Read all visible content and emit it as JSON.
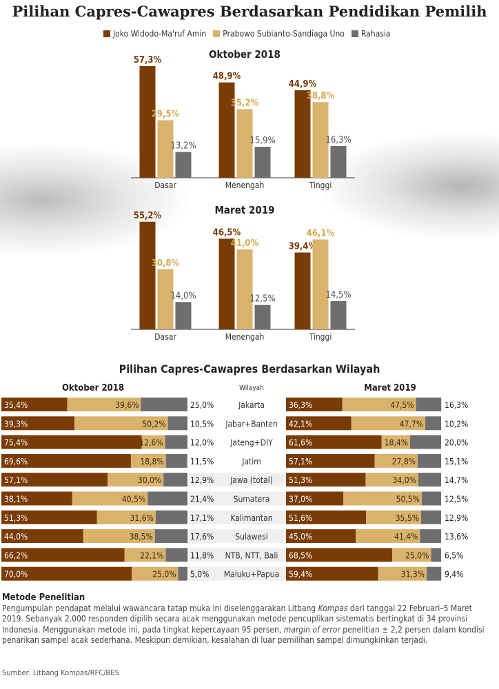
{
  "title": "Pilihan Capres-Cawapres Berdasarkan Pendidikan Pemilih",
  "legend": [
    {
      "name": "Joko Widodo-Ma'ruf Amin",
      "color": "#7a3c06"
    },
    {
      "name": "Prabowo Subianto-Sandiaga Uno",
      "color": "#d9b36c"
    },
    {
      "name": "Rahasia",
      "color": "#6e6e70"
    }
  ],
  "section2_title": "Pilihan Capres-Cawapres Berdasarkan Wilayah",
  "wilayah_label": "Wilayah",
  "chart_data": [
    {
      "type": "bar",
      "title": "Oktober 2018",
      "categories": [
        "Dasar",
        "Menengah",
        "Tinggi"
      ],
      "series": [
        {
          "name": "Joko Widodo-Ma'ruf Amin",
          "values": [
            57.3,
            48.9,
            44.9
          ],
          "labels": [
            "57,3%",
            "48,9%",
            "44,9%"
          ]
        },
        {
          "name": "Prabowo Subianto-Sandiaga Uno",
          "values": [
            29.5,
            35.2,
            38.8
          ],
          "labels": [
            "29,5%",
            "35,2%",
            "38,8%"
          ]
        },
        {
          "name": "Rahasia",
          "values": [
            13.2,
            15.9,
            16.3
          ],
          "labels": [
            "13,2%",
            "15,9%",
            "16,3%"
          ]
        }
      ]
    },
    {
      "type": "bar",
      "title": "Maret 2019",
      "categories": [
        "Dasar",
        "Menengah",
        "Tinggi"
      ],
      "series": [
        {
          "name": "Joko Widodo-Ma'ruf Amin",
          "values": [
            55.2,
            46.5,
            39.4
          ],
          "labels": [
            "55,2%",
            "46,5%",
            "39,4%"
          ]
        },
        {
          "name": "Prabowo Subianto-Sandiaga Uno",
          "values": [
            30.8,
            41.0,
            46.1
          ],
          "labels": [
            "30,8%",
            "41,0%",
            "46,1%"
          ]
        },
        {
          "name": "Rahasia",
          "values": [
            14.0,
            12.5,
            14.5
          ],
          "labels": [
            "14,0%",
            "12,5%",
            "14,5%"
          ]
        }
      ]
    },
    {
      "type": "bar",
      "orientation": "horizontal-stacked",
      "title": "Oktober 2018",
      "categories": [
        "Jakarta",
        "Jabar+Banten",
        "Jateng+DIY",
        "Jatim",
        "Jawa (total)",
        "Sumatera",
        "Kalimantan",
        "Sulawesi",
        "NTB, NTT, Bali",
        "Maluku+Papua"
      ],
      "series": [
        {
          "name": "Joko Widodo-Ma'ruf Amin",
          "values": [
            35.4,
            39.3,
            75.4,
            69.6,
            57.1,
            38.1,
            51.3,
            44.0,
            66.2,
            70.0
          ],
          "labels": [
            "35,4%",
            "39,3%",
            "75,4%",
            "69,6%",
            "57,1%",
            "38,1%",
            "51,3%",
            "44,0%",
            "66,2%",
            "70,0%"
          ]
        },
        {
          "name": "Prabowo Subianto-Sandiaga Uno",
          "values": [
            39.6,
            50.2,
            12.6,
            18.8,
            30.0,
            40.5,
            31.6,
            38.5,
            22.1,
            25.0
          ],
          "labels": [
            "39,6%",
            "50,2%",
            "12,6%",
            "18,8%",
            "30,0%",
            "40,5%",
            "31,6%",
            "38,5%",
            "22,1%",
            "25,0%"
          ]
        },
        {
          "name": "Rahasia",
          "values": [
            25.0,
            10.5,
            12.0,
            11.5,
            12.9,
            21.4,
            17.1,
            17.6,
            11.8,
            5.0
          ],
          "labels": [
            "25,0%",
            "10,5%",
            "12,0%",
            "11,5%",
            "12,9%",
            "21,4%",
            "17,1%",
            "17,6%",
            "11,8%",
            "5,0%"
          ]
        }
      ]
    },
    {
      "type": "bar",
      "orientation": "horizontal-stacked",
      "title": "Maret 2019",
      "categories": [
        "Jakarta",
        "Jabar+Banten",
        "Jateng+DIY",
        "Jatim",
        "Jawa (total)",
        "Sumatera",
        "Kalimantan",
        "Sulawesi",
        "NTB, NTT, Bali",
        "Maluku+Papua"
      ],
      "series": [
        {
          "name": "Joko Widodo-Ma'ruf Amin",
          "values": [
            36.3,
            42.1,
            61.6,
            57.1,
            51.3,
            37.0,
            51.6,
            45.0,
            68.5,
            59.4
          ],
          "labels": [
            "36,3%",
            "42,1%",
            "61,6%",
            "57,1%",
            "51,3%",
            "37,0%",
            "51,6%",
            "45,0%",
            "68,5%",
            "59,4%"
          ]
        },
        {
          "name": "Prabowo Subianto-Sandiaga Uno",
          "values": [
            47.5,
            47.7,
            18.4,
            27.8,
            34.0,
            50.5,
            35.5,
            41.4,
            25.0,
            31.3
          ],
          "labels": [
            "47,5%",
            "47,7%",
            "18,4%",
            "27,8%",
            "34,0%",
            "50,5%",
            "35,5%",
            "41,4%",
            "25,0%",
            "31,3%"
          ]
        },
        {
          "name": "Rahasia",
          "values": [
            16.3,
            10.2,
            20.0,
            15.1,
            14.7,
            12.5,
            12.9,
            13.6,
            6.5,
            9.4
          ],
          "labels": [
            "16,3%",
            "10,2%",
            "20,0%",
            "15,1%",
            "14,7%",
            "12,5%",
            "12,9%",
            "13,6%",
            "6,5%",
            "9,4%"
          ]
        }
      ]
    }
  ],
  "method": {
    "heading": "Metode Penelitian",
    "text_1": "Pengumpulan pendapat melalui wawancara tatap muka ini diselenggarakan Litbang ",
    "text_kompas": "Kompas",
    "text_2": " dari tanggal 22 Februari–5 Maret 2019. Sebanyak 2.000 responden dipilih secara acak menggunakan metode pencuplikan sistematis bertingkat di 34 provinsi Indonesia. Menggunakan metode ini, pada tingkat kepercayaan 95 persen, ",
    "text_moe": "margin of error",
    "text_3": " penelitian ± 2,2 persen dalam kondisi penarikan sampel acak sederhana. Meskipun demikian, kesalahan di luar pemilihan sampel dimungkinkan terjadi."
  },
  "source": "Sumber: Litbang Kompas/RFC/BES"
}
